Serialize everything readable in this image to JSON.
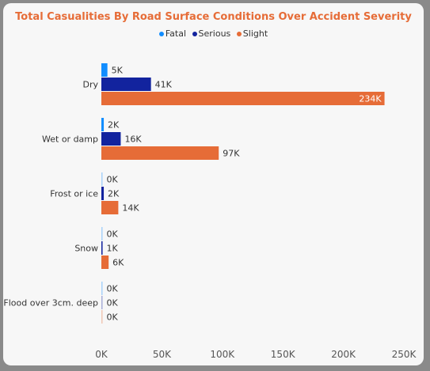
{
  "chart_data": {
    "type": "bar",
    "orientation": "horizontal",
    "title": "Total Casualities By Road Surface Conditions Over Accident Severity",
    "categories": [
      "Dry",
      "Wet or damp",
      "Frost or ice",
      "Snow",
      "Flood over 3cm. deep"
    ],
    "series": [
      {
        "name": "Fatal",
        "color": "#118dff",
        "values": [
          5000,
          2000,
          100,
          100,
          10
        ],
        "labels": [
          "5K",
          "2K",
          "0K",
          "0K",
          "0K"
        ]
      },
      {
        "name": "Serious",
        "color": "#12239e",
        "values": [
          41000,
          16000,
          2000,
          1000,
          100
        ],
        "labels": [
          "41K",
          "16K",
          "2K",
          "1K",
          "0K"
        ]
      },
      {
        "name": "Slight",
        "color": "#e66c37",
        "values": [
          234000,
          97000,
          14000,
          6000,
          300
        ],
        "labels": [
          "234K",
          "97K",
          "14K",
          "6K",
          "0K"
        ]
      }
    ],
    "xlim": [
      0,
      250000
    ],
    "xticks": [
      0,
      50000,
      100000,
      150000,
      200000,
      250000
    ],
    "xtick_labels": [
      "0K",
      "50K",
      "100K",
      "150K",
      "200K",
      "250K"
    ],
    "legend_position": "top",
    "grid": false
  }
}
